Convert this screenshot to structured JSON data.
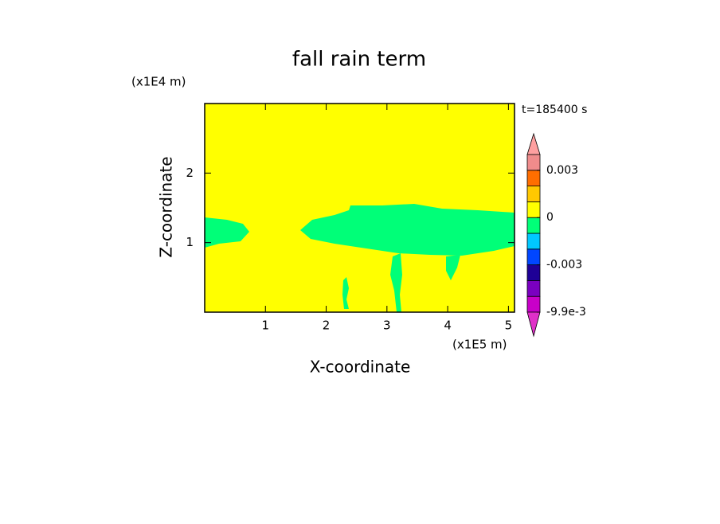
{
  "chart_data": {
    "type": "contour",
    "title": "fall rain term",
    "xlabel": "X-coordinate",
    "ylabel": "Z-coordinate",
    "x_unit": "(x1E5 m)",
    "y_unit": "(x1E4 m)",
    "time_label": "t=185400 s",
    "xlim": [
      0,
      5.1
    ],
    "xticks": [
      1,
      2,
      3,
      4,
      5
    ],
    "ylim": [
      0,
      3
    ],
    "yticks": [
      1,
      2
    ],
    "colorbar": {
      "levels": [
        -0.0099,
        -0.007,
        -0.004,
        -0.003,
        -0.002,
        -0.001,
        0,
        0.001,
        0.002,
        0.003,
        0.006
      ],
      "colors": [
        "#c800c8",
        "#7a00c0",
        "#1e0096",
        "#0046ff",
        "#00c8ff",
        "#00ff78",
        "#ffff00",
        "#ffc800",
        "#ff6e00",
        "#f08c8c"
      ],
      "extend_colors": [
        "#e030c8",
        "#ffa0a0"
      ],
      "ticks": [
        {
          "value": -0.0099,
          "label": "-9.9e-3"
        },
        -0.003,
        0,
        0.003
      ]
    }
  }
}
